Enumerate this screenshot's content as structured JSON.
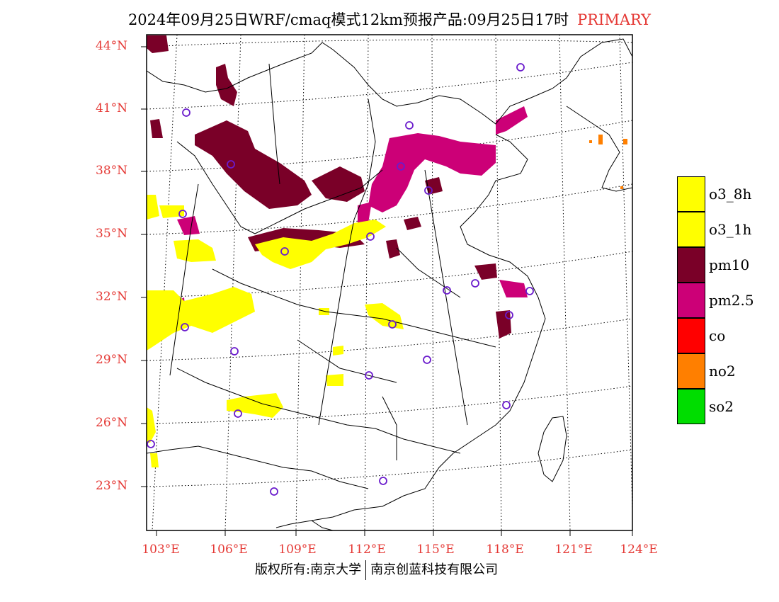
{
  "title": "2024年09月25日WRF/cmaq模式12km预报产品:09月25日17时",
  "title_tag": "PRIMARY",
  "lat_labels": [
    "44°N",
    "41°N",
    "38°N",
    "35°N",
    "32°N",
    "29°N",
    "26°N",
    "23°N"
  ],
  "lon_labels": [
    "103°E",
    "106°E",
    "109°E",
    "112°E",
    "115°E",
    "118°E",
    "121°E",
    "124°E"
  ],
  "legend": [
    {
      "label": "o3_8h",
      "color": "#ffff00"
    },
    {
      "label": "o3_1h",
      "color": "#ffff00"
    },
    {
      "label": "pm10",
      "color": "#7a0028"
    },
    {
      "label": "pm2.5",
      "color": "#cc0077"
    },
    {
      "label": "co",
      "color": "#ff0000"
    },
    {
      "label": "no2",
      "color": "#ff7f00"
    },
    {
      "label": "so2",
      "color": "#00dd00"
    }
  ],
  "footer": {
    "left": "版权所有:南京大学",
    "right": "南京创蓝科技有限公司"
  }
}
